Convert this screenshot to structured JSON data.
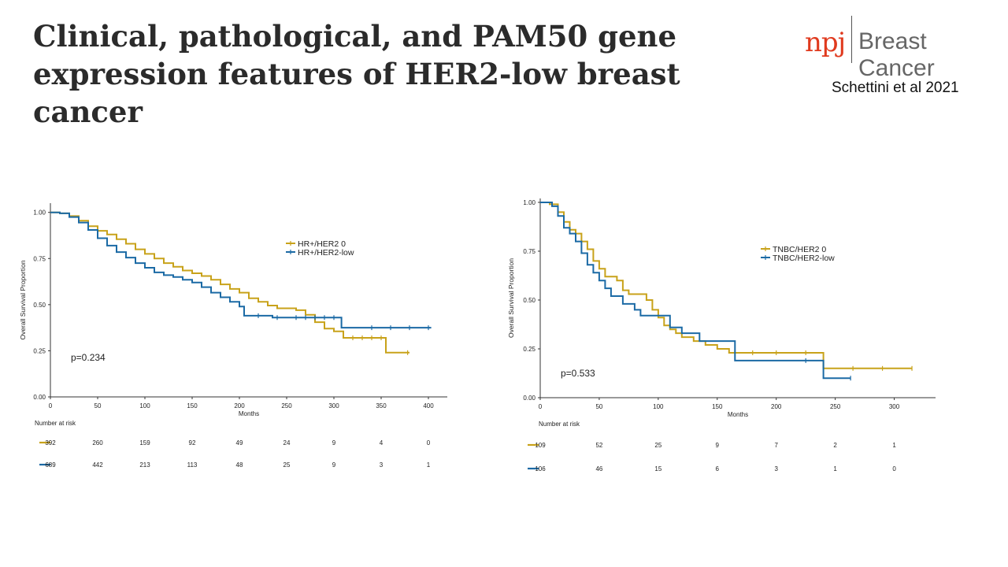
{
  "slide": {
    "title": "Clinical, pathological, and PAM50 gene expression features of HER2-low breast cancer",
    "journal_logo": {
      "mark": "npj",
      "journal": "Breast Cancer"
    },
    "citation": "Schettini et al 2021"
  },
  "colors": {
    "gold": "#c8a21a",
    "blue": "#1b6aa5"
  },
  "chart_data": [
    {
      "type": "line",
      "step": true,
      "xlabel": "Months",
      "ylabel": "Overall Survival Proportion",
      "xlim": [
        0,
        420
      ],
      "ylim": [
        0,
        1.05
      ],
      "xticks": [
        0,
        50,
        100,
        150,
        200,
        250,
        300,
        350,
        400
      ],
      "yticks": [
        "0.00",
        "0.25",
        "0.50",
        "0.75",
        "1.00"
      ],
      "legend": "top-right",
      "annotation": "p=0.234",
      "risk_table_title": "Number at risk",
      "risk_times": [
        0,
        50,
        100,
        150,
        200,
        250,
        300,
        350,
        400
      ],
      "series": [
        {
          "name": "HR+/HER2 0",
          "color": "#c8a21a",
          "risk": [
            "392",
            "260",
            "159",
            "92",
            "49",
            "24",
            "9",
            "4",
            "0"
          ],
          "points": [
            [
              0,
              1.0
            ],
            [
              10,
              0.995
            ],
            [
              20,
              0.98
            ],
            [
              30,
              0.955
            ],
            [
              40,
              0.925
            ],
            [
              50,
              0.9
            ],
            [
              60,
              0.88
            ],
            [
              70,
              0.855
            ],
            [
              80,
              0.83
            ],
            [
              90,
              0.8
            ],
            [
              100,
              0.775
            ],
            [
              110,
              0.75
            ],
            [
              120,
              0.725
            ],
            [
              130,
              0.705
            ],
            [
              140,
              0.685
            ],
            [
              150,
              0.67
            ],
            [
              160,
              0.655
            ],
            [
              170,
              0.635
            ],
            [
              180,
              0.61
            ],
            [
              190,
              0.585
            ],
            [
              200,
              0.565
            ],
            [
              210,
              0.535
            ],
            [
              220,
              0.515
            ],
            [
              230,
              0.495
            ],
            [
              240,
              0.48
            ],
            [
              260,
              0.47
            ],
            [
              270,
              0.445
            ],
            [
              280,
              0.405
            ],
            [
              290,
              0.37
            ],
            [
              300,
              0.355
            ],
            [
              310,
              0.32
            ],
            [
              330,
              0.32
            ],
            [
              350,
              0.32
            ],
            [
              355,
              0.29
            ],
            [
              355,
              0.24
            ],
            [
              380,
              0.24
            ]
          ],
          "censor_x": [
            320,
            330,
            340,
            350,
            378
          ]
        },
        {
          "name": "HR+/HER2-low",
          "color": "#1b6aa5",
          "risk": [
            "689",
            "442",
            "213",
            "113",
            "48",
            "25",
            "9",
            "3",
            "1"
          ],
          "points": [
            [
              0,
              1.0
            ],
            [
              10,
              0.995
            ],
            [
              20,
              0.975
            ],
            [
              30,
              0.945
            ],
            [
              40,
              0.905
            ],
            [
              50,
              0.86
            ],
            [
              60,
              0.82
            ],
            [
              70,
              0.785
            ],
            [
              80,
              0.755
            ],
            [
              90,
              0.725
            ],
            [
              100,
              0.7
            ],
            [
              110,
              0.675
            ],
            [
              120,
              0.66
            ],
            [
              130,
              0.65
            ],
            [
              140,
              0.635
            ],
            [
              150,
              0.62
            ],
            [
              160,
              0.595
            ],
            [
              170,
              0.565
            ],
            [
              180,
              0.54
            ],
            [
              190,
              0.515
            ],
            [
              200,
              0.49
            ],
            [
              205,
              0.44
            ],
            [
              230,
              0.44
            ],
            [
              235,
              0.43
            ],
            [
              260,
              0.43
            ],
            [
              275,
              0.43
            ],
            [
              295,
              0.43
            ],
            [
              305,
              0.43
            ],
            [
              308,
              0.375
            ],
            [
              360,
              0.375
            ],
            [
              403,
              0.375
            ]
          ],
          "censor_x": [
            220,
            240,
            260,
            270,
            280,
            290,
            300,
            340,
            360,
            380,
            400
          ]
        }
      ]
    },
    {
      "type": "line",
      "step": true,
      "xlabel": "Months",
      "ylabel": "Overall Survival Proportion",
      "xlim": [
        0,
        335
      ],
      "ylim": [
        0,
        1.02
      ],
      "xticks": [
        0,
        50,
        100,
        150,
        200,
        250,
        300
      ],
      "yticks": [
        "0.00",
        "0.25",
        "0.50",
        "0.75",
        "1.00"
      ],
      "legend": "top-right",
      "annotation": "p=0.533",
      "risk_table_title": "Number at risk",
      "risk_times": [
        0,
        50,
        100,
        150,
        200,
        250,
        300
      ],
      "series": [
        {
          "name": "TNBC/HER2 0",
          "color": "#c8a21a",
          "risk": [
            "109",
            "52",
            "25",
            "9",
            "7",
            "2",
            "1"
          ],
          "points": [
            [
              0,
              1.0
            ],
            [
              8,
              0.99
            ],
            [
              15,
              0.95
            ],
            [
              20,
              0.9
            ],
            [
              25,
              0.86
            ],
            [
              30,
              0.84
            ],
            [
              35,
              0.8
            ],
            [
              40,
              0.76
            ],
            [
              45,
              0.7
            ],
            [
              50,
              0.66
            ],
            [
              55,
              0.62
            ],
            [
              65,
              0.6
            ],
            [
              70,
              0.55
            ],
            [
              75,
              0.53
            ],
            [
              85,
              0.53
            ],
            [
              90,
              0.5
            ],
            [
              95,
              0.45
            ],
            [
              100,
              0.41
            ],
            [
              105,
              0.37
            ],
            [
              110,
              0.35
            ],
            [
              115,
              0.33
            ],
            [
              120,
              0.31
            ],
            [
              130,
              0.29
            ],
            [
              140,
              0.27
            ],
            [
              150,
              0.25
            ],
            [
              160,
              0.23
            ],
            [
              240,
              0.23
            ],
            [
              240,
              0.15
            ],
            [
              315,
              0.15
            ]
          ],
          "censor_x": [
            180,
            200,
            225,
            265,
            290,
            315
          ]
        },
        {
          "name": "TNBC/HER2-low",
          "color": "#1b6aa5",
          "risk": [
            "106",
            "46",
            "15",
            "6",
            "3",
            "1",
            "0"
          ],
          "points": [
            [
              0,
              1.0
            ],
            [
              5,
              1.0
            ],
            [
              10,
              0.98
            ],
            [
              15,
              0.93
            ],
            [
              20,
              0.87
            ],
            [
              25,
              0.84
            ],
            [
              30,
              0.8
            ],
            [
              35,
              0.74
            ],
            [
              40,
              0.68
            ],
            [
              45,
              0.64
            ],
            [
              50,
              0.6
            ],
            [
              55,
              0.56
            ],
            [
              60,
              0.52
            ],
            [
              70,
              0.48
            ],
            [
              80,
              0.45
            ],
            [
              85,
              0.42
            ],
            [
              100,
              0.42
            ],
            [
              110,
              0.36
            ],
            [
              120,
              0.33
            ],
            [
              135,
              0.29
            ],
            [
              165,
              0.29
            ],
            [
              165,
              0.19
            ],
            [
              235,
              0.19
            ],
            [
              240,
              0.17
            ],
            [
              240,
              0.1
            ],
            [
              263,
              0.1
            ]
          ],
          "censor_x": [
            225,
            263
          ]
        }
      ]
    }
  ]
}
